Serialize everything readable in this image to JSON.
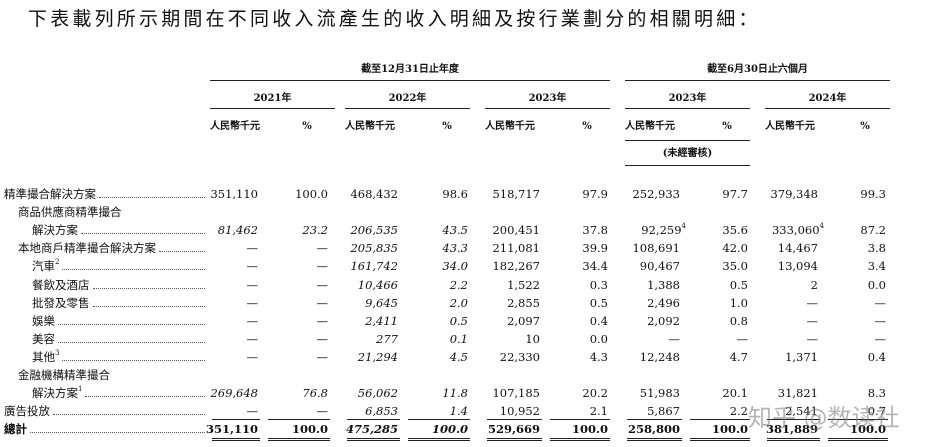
{
  "title": "下表載列所示期間在不同收入流產生的收入明細及按行業劃分的相關明細：",
  "header": {
    "period_groups": [
      {
        "label": "截至12月31日止年度",
        "years": [
          "2021年",
          "2022年",
          "2023年"
        ]
      },
      {
        "label": "截至6月30日止六個月",
        "years": [
          "2023年",
          "2024年"
        ]
      }
    ],
    "amount_label": "人民幣千元",
    "percent_label": "%",
    "unaudited_note": "(未經審核)"
  },
  "rows": [
    {
      "label": "精準撮合解決方案",
      "values": [
        "351,110",
        "100.0",
        "468,432",
        "98.6",
        "518,717",
        "97.9",
        "252,933",
        "97.7",
        "379,348",
        "99.3"
      ]
    },
    {
      "label": "商品供應商精準撮合"
    },
    {
      "label": "解決方案",
      "values": [
        "81,462",
        "23.2",
        "206,535",
        "43.5",
        "200,451",
        "37.8",
        {
          "text": "92,259",
          "note": "4"
        },
        "35.6",
        {
          "text": "333,060",
          "note": "4"
        },
        "87.2"
      ]
    },
    {
      "label": "本地商戶精準撮合解決方案",
      "values": [
        "—",
        "—",
        "205,835",
        "43.3",
        "211,081",
        "39.9",
        "108,691",
        "42.0",
        "14,467",
        "3.8"
      ]
    },
    {
      "label": "汽車",
      "note": "2",
      "values": [
        "—",
        "—",
        "161,742",
        "34.0",
        "182,267",
        "34.4",
        "90,467",
        "35.0",
        "13,094",
        "3.4"
      ]
    },
    {
      "label": "餐飲及酒店",
      "values": [
        "—",
        "—",
        "10,466",
        "2.2",
        "1,522",
        "0.3",
        "1,388",
        "0.5",
        "2",
        "0.0"
      ]
    },
    {
      "label": "批發及零售",
      "values": [
        "—",
        "—",
        "9,645",
        "2.0",
        "2,855",
        "0.5",
        "2,496",
        "1.0",
        "—",
        "—"
      ]
    },
    {
      "label": "娛樂",
      "values": [
        "—",
        "—",
        "2,411",
        "0.5",
        "2,097",
        "0.4",
        "2,092",
        "0.8",
        "—",
        "—"
      ]
    },
    {
      "label": "美容",
      "values": [
        "—",
        "—",
        "277",
        "0.1",
        "10",
        "0.0",
        "—",
        "—",
        "—",
        "—"
      ]
    },
    {
      "label": "其他",
      "note": "3",
      "values": [
        "—",
        "—",
        "21,294",
        "4.5",
        "22,330",
        "4.3",
        "12,248",
        "4.7",
        "1,371",
        "0.4"
      ]
    },
    {
      "label": "金融機構精準撮合"
    },
    {
      "label": "解決方案",
      "note": "1",
      "values": [
        "269,648",
        "76.8",
        "56,062",
        "11.8",
        "107,185",
        "20.2",
        "51,983",
        "20.1",
        "31,821",
        "8.3"
      ]
    },
    {
      "label": "廣告投放",
      "values": [
        "—",
        "—",
        "6,853",
        "1.4",
        "10,952",
        "2.1",
        "5,867",
        "2.2",
        "2,541",
        "0.7"
      ]
    },
    {
      "label": "總計",
      "values": [
        "351,110",
        "100.0",
        "475,285",
        "100.0",
        "529,669",
        "100.0",
        "258,800",
        "100.0",
        "381,889",
        "100.0"
      ]
    }
  ],
  "watermark": "知乎 @数读社"
}
